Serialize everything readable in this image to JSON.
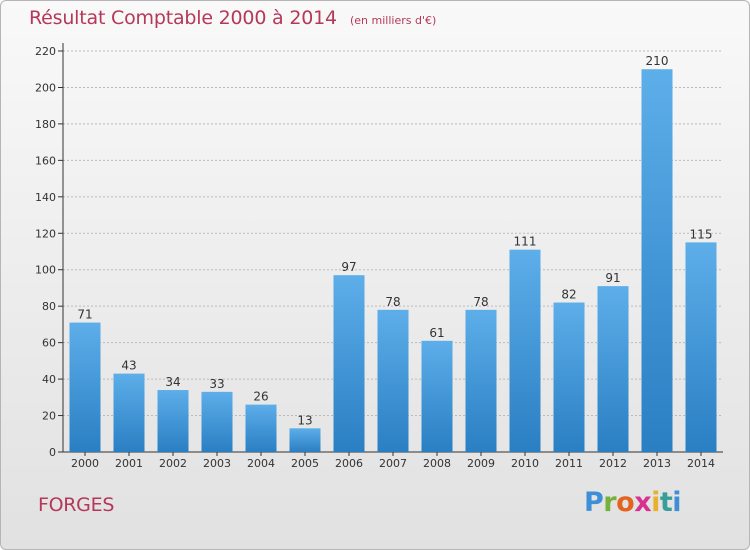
{
  "chart_data": {
    "type": "bar",
    "title": "Résultat Comptable 2000 à 2014",
    "subtitle": "(en milliers d'€)",
    "categories": [
      "2000",
      "2001",
      "2002",
      "2003",
      "2004",
      "2005",
      "2006",
      "2007",
      "2008",
      "2009",
      "2010",
      "2011",
      "2012",
      "2013",
      "2014"
    ],
    "values": [
      71,
      43,
      34,
      33,
      26,
      13,
      97,
      78,
      61,
      78,
      111,
      82,
      91,
      210,
      115
    ],
    "ylim": [
      0,
      220
    ],
    "yticks": [
      0,
      20,
      40,
      60,
      80,
      100,
      120,
      140,
      160,
      180,
      200,
      220
    ],
    "grid": true,
    "bar_color": "#4a9fe0"
  },
  "footer": {
    "commune": "FORGES",
    "logo_text": "Proxiti"
  },
  "colors": {
    "title": "#b53859",
    "grid": "#bbbbbb"
  }
}
